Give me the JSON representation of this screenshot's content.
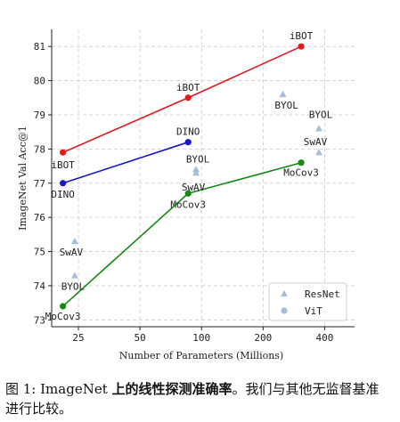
{
  "chart_data": {
    "type": "line",
    "xlabel": "Number of Parameters (Millions)",
    "ylabel": "ImageNet Val Acc@1",
    "x_ticks": [
      "25",
      "50",
      "100",
      "200",
      "400"
    ],
    "y_ticks": [
      "73",
      "74",
      "75",
      "76",
      "77",
      "78",
      "79",
      "80",
      "81"
    ],
    "ylim": [
      72.8,
      81.5
    ],
    "xlim": [
      18.5,
      560
    ],
    "x_scale": "log",
    "grid": true,
    "legend": {
      "position": "bottom-right",
      "entries": [
        {
          "label": "ResNet",
          "marker": "triangle"
        },
        {
          "label": "ViT",
          "marker": "circle"
        }
      ]
    },
    "series": [
      {
        "name": "iBOT",
        "color": "#e31a1c",
        "x": [
          21,
          86,
          307
        ],
        "y": [
          77.9,
          79.5,
          81.0
        ],
        "labels": [
          "iBOT",
          "iBOT",
          "iBOT"
        ]
      },
      {
        "name": "DINO",
        "color": "#1515cc",
        "x": [
          21,
          86
        ],
        "y": [
          77.0,
          78.2
        ],
        "labels": [
          "DINO",
          "DINO"
        ]
      },
      {
        "name": "MoCov3",
        "color": "#138a13",
        "x": [
          21,
          86,
          307
        ],
        "y": [
          73.4,
          76.7,
          77.6
        ],
        "labels": [
          "MoCov3",
          "MoCov3",
          "MoCov3"
        ]
      }
    ],
    "resnet_points": [
      {
        "x": 24,
        "y": 75.3,
        "label": "SwAV"
      },
      {
        "x": 24,
        "y": 74.3,
        "label": "BYOL"
      },
      {
        "x": 94,
        "y": 77.4,
        "label": "BYOL"
      },
      {
        "x": 94,
        "y": 77.3,
        "label": "SwAV"
      },
      {
        "x": 250,
        "y": 79.6,
        "label": "BYOL"
      },
      {
        "x": 375,
        "y": 78.6,
        "label": "BYOL"
      },
      {
        "x": 375,
        "y": 77.9,
        "label": "SwAV"
      }
    ],
    "resnet_color": "#a6bddb"
  },
  "caption": {
    "prefix": "图 1: ImageNet ",
    "bold": "上的线性探测准确率",
    "suffix": "。我们与其他无监督基准进行比较。"
  }
}
